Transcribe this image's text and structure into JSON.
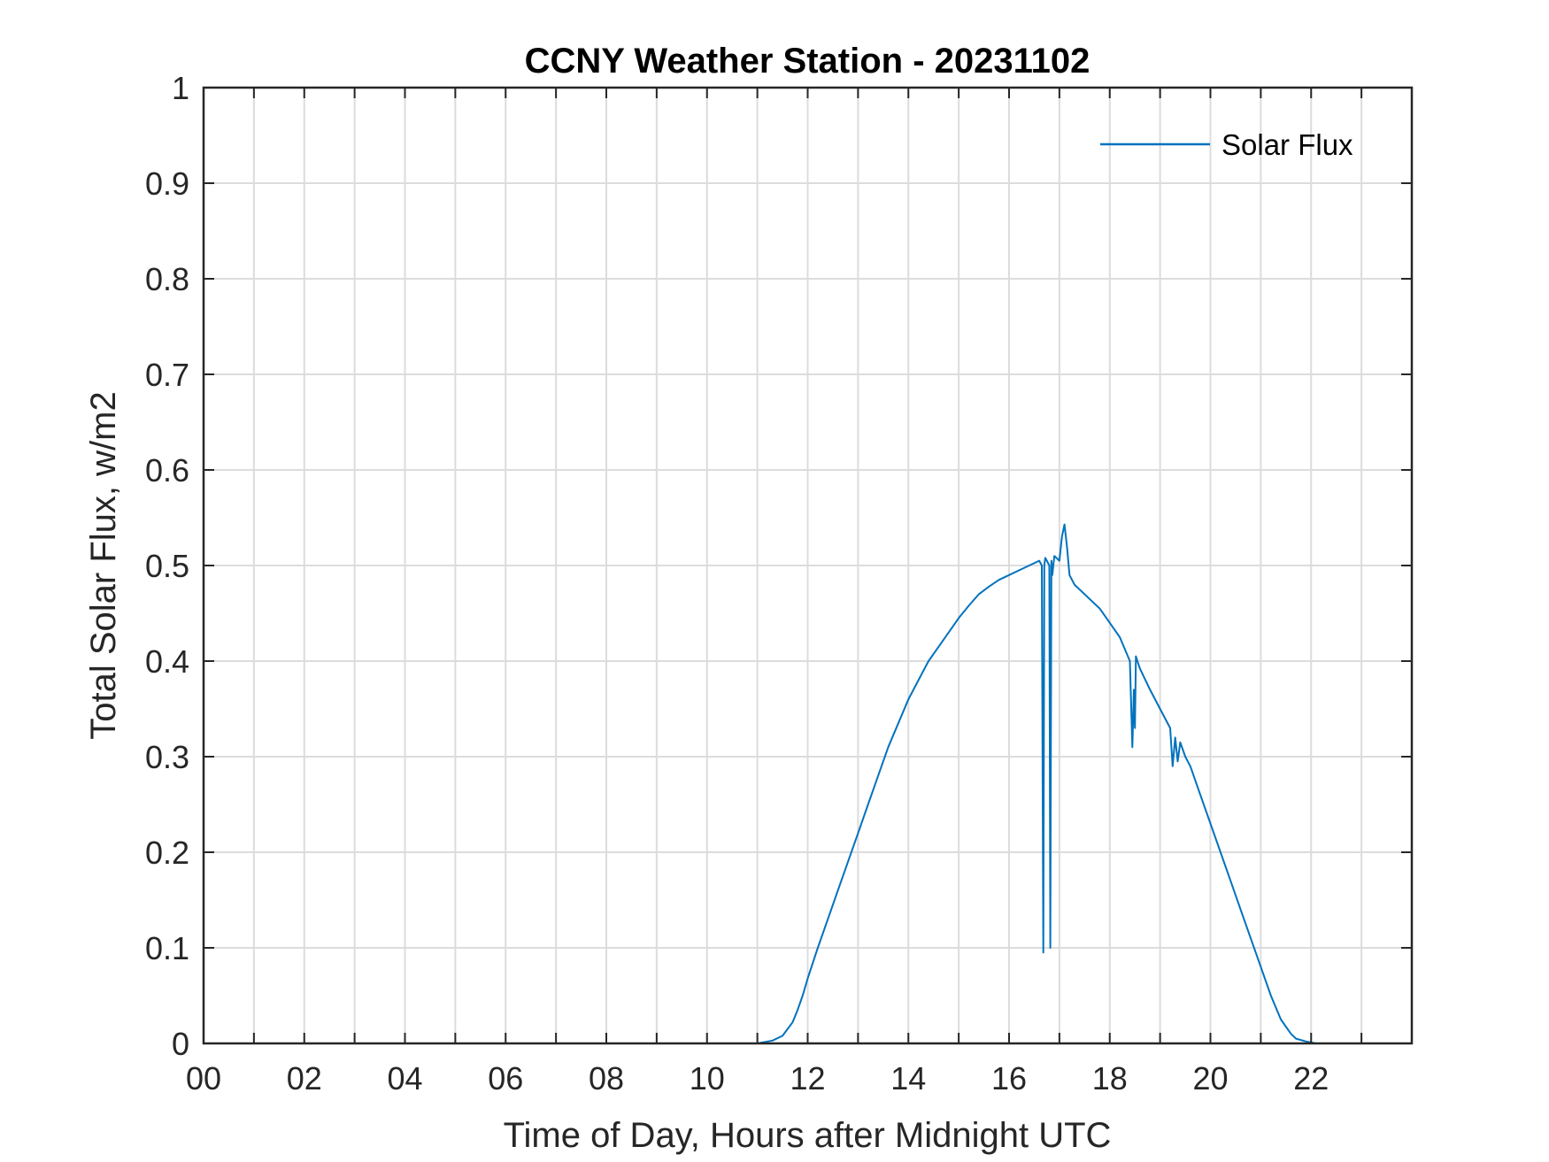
{
  "chart_data": {
    "type": "line",
    "title": "CCNY Weather Station - 20231102",
    "xlabel": "Time of Day, Hours after Midnight UTC",
    "ylabel": "Total Solar Flux, w/m2",
    "xlim": [
      0,
      24
    ],
    "ylim": [
      0,
      1
    ],
    "grid": true,
    "x_ticks": [
      0,
      2,
      4,
      6,
      8,
      10,
      12,
      14,
      16,
      18,
      20,
      22
    ],
    "x_tick_labels": [
      "00",
      "02",
      "04",
      "06",
      "08",
      "10",
      "12",
      "14",
      "16",
      "18",
      "20",
      "22"
    ],
    "x_minor_grid_step": 1,
    "y_ticks": [
      0,
      0.1,
      0.2,
      0.3,
      0.4,
      0.5,
      0.6,
      0.7,
      0.8,
      0.9,
      1
    ],
    "y_tick_labels": [
      "0",
      "0.1",
      "0.2",
      "0.3",
      "0.4",
      "0.5",
      "0.6",
      "0.7",
      "0.8",
      "0.9",
      "1"
    ],
    "legend": {
      "position": "top-right",
      "entries": [
        "Solar Flux"
      ]
    },
    "series": [
      {
        "name": "Solar Flux",
        "color": "#0072BD",
        "x": [
          0,
          11.0,
          11.3,
          11.5,
          11.7,
          11.8,
          11.9,
          12.0,
          12.2,
          12.4,
          12.6,
          12.8,
          13.0,
          13.2,
          13.4,
          13.6,
          13.8,
          14.0,
          14.2,
          14.4,
          14.6,
          14.8,
          15.0,
          15.2,
          15.4,
          15.6,
          15.8,
          16.0,
          16.2,
          16.4,
          16.6,
          16.65,
          16.68,
          16.7,
          16.72,
          16.75,
          16.8,
          16.82,
          16.84,
          16.85,
          16.86,
          16.88,
          16.9,
          17.0,
          17.05,
          17.1,
          17.15,
          17.2,
          17.3,
          17.6,
          17.8,
          18.0,
          18.2,
          18.4,
          18.45,
          18.48,
          18.5,
          18.52,
          18.55,
          18.6,
          18.8,
          19.0,
          19.2,
          19.25,
          19.3,
          19.35,
          19.4,
          19.5,
          19.6,
          19.8,
          20.0,
          20.2,
          20.4,
          20.6,
          20.8,
          21.0,
          21.2,
          21.4,
          21.6,
          21.7,
          21.9,
          22.1,
          22.3,
          24
        ],
        "values": [
          0,
          0,
          0.003,
          0.008,
          0.022,
          0.035,
          0.05,
          0.068,
          0.1,
          0.13,
          0.16,
          0.19,
          0.22,
          0.25,
          0.28,
          0.31,
          0.335,
          0.36,
          0.38,
          0.4,
          0.415,
          0.43,
          0.445,
          0.458,
          0.47,
          0.478,
          0.485,
          0.49,
          0.495,
          0.5,
          0.505,
          0.5,
          0.095,
          0.5,
          0.508,
          0.505,
          0.5,
          0.1,
          0.505,
          0.5,
          0.49,
          0.5,
          0.51,
          0.505,
          0.53,
          0.543,
          0.52,
          0.49,
          0.48,
          0.465,
          0.455,
          0.44,
          0.425,
          0.4,
          0.31,
          0.37,
          0.33,
          0.405,
          0.4,
          0.392,
          0.37,
          0.35,
          0.33,
          0.29,
          0.32,
          0.295,
          0.315,
          0.3,
          0.29,
          0.26,
          0.23,
          0.2,
          0.17,
          0.14,
          0.11,
          0.08,
          0.05,
          0.025,
          0.01,
          0.005,
          0.002,
          0.0,
          0,
          0
        ]
      }
    ]
  }
}
